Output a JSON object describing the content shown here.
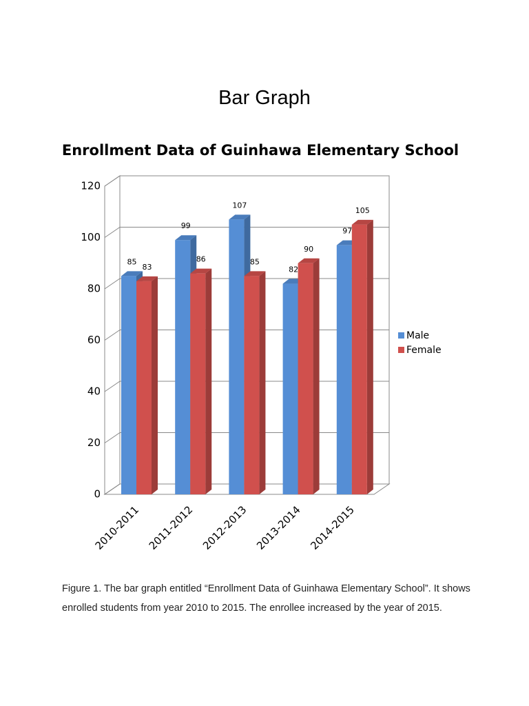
{
  "heading": "Bar Graph",
  "chart_data": {
    "type": "bar3d",
    "title": "Enrollment Data of Guinhawa Elementary School",
    "categories": [
      "2010-2011",
      "2011-2012",
      "2012-2013",
      "2013-2014",
      "2014-2015"
    ],
    "series": [
      {
        "name": "Male",
        "color": "#558ed5",
        "values": [
          85,
          99,
          107,
          82,
          97
        ]
      },
      {
        "name": "Female",
        "color": "#d0504d",
        "values": [
          83,
          86,
          85,
          90,
          105
        ]
      }
    ],
    "ylim": [
      0,
      120
    ],
    "yticks": [
      0,
      20,
      40,
      60,
      80,
      100,
      120
    ],
    "grid": true,
    "legend": "right"
  },
  "caption": "Figure 1. The bar graph entitled “Enrollment Data of Guinhawa Elementary School”. It shows enrolled students from year 2010 to 2015. The enrollee increased by the year of 2015."
}
